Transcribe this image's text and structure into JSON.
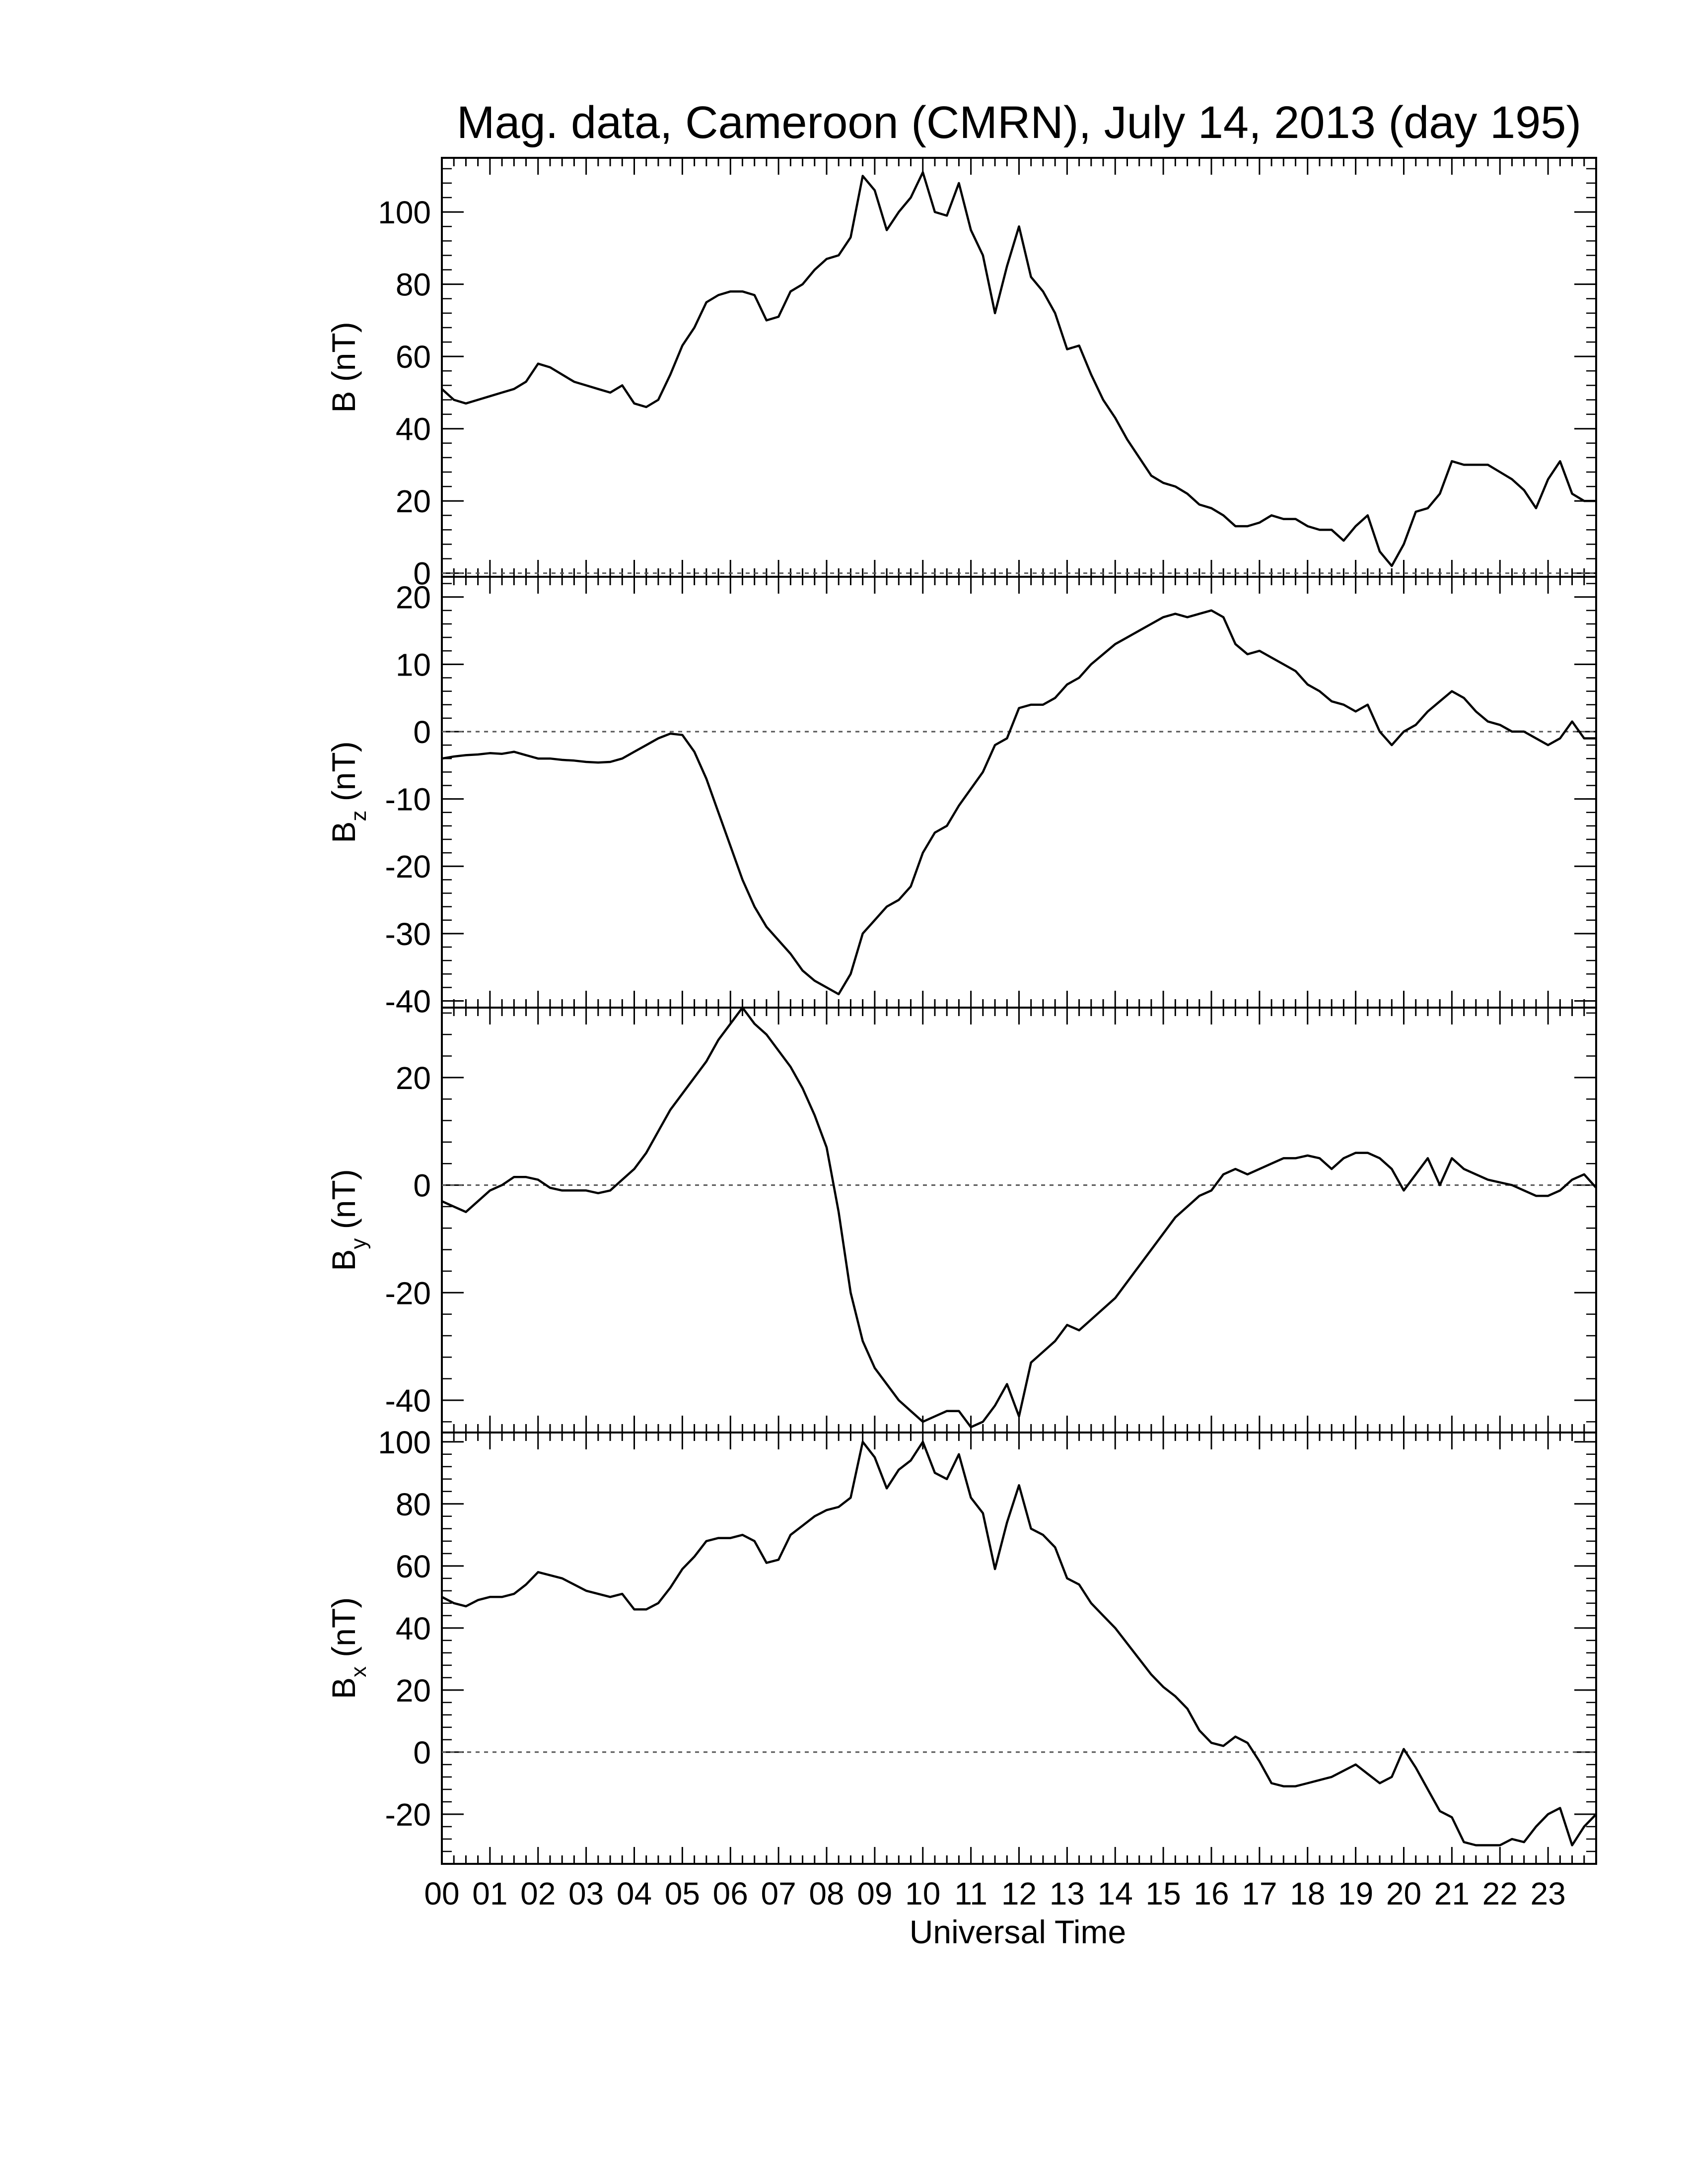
{
  "chart_data": {
    "type": "line",
    "title": "Mag. data, Cameroon (CMRN), July 14, 2013 (day 195)",
    "xlabel": "Universal Time",
    "x_unit": "hours UT",
    "xlim": [
      0,
      24
    ],
    "x_tick_labels": [
      "00",
      "01",
      "02",
      "03",
      "04",
      "05",
      "06",
      "07",
      "08",
      "09",
      "10",
      "11",
      "12",
      "13",
      "14",
      "15",
      "16",
      "17",
      "18",
      "19",
      "20",
      "21",
      "22",
      "23"
    ],
    "colors": {
      "line": "#000000",
      "axis": "#000000",
      "zero_line": "#555555",
      "background": "#ffffff"
    },
    "grid": false,
    "legend": "none",
    "panels": [
      {
        "name": "B",
        "ylabel_main": "B",
        "ylabel_sub": "",
        "ylabel_unit": "(nT)",
        "ylim": [
          -1,
          115
        ],
        "yticks": [
          0,
          20,
          40,
          60,
          80,
          100
        ],
        "zero_line": true,
        "x": [
          0,
          0.25,
          0.5,
          0.75,
          1,
          1.25,
          1.5,
          1.75,
          2,
          2.25,
          2.5,
          2.75,
          3,
          3.25,
          3.5,
          3.75,
          4,
          4.25,
          4.5,
          4.75,
          5,
          5.25,
          5.5,
          5.75,
          6,
          6.25,
          6.5,
          6.75,
          7,
          7.25,
          7.5,
          7.75,
          8,
          8.25,
          8.5,
          8.75,
          9,
          9.25,
          9.5,
          9.75,
          10,
          10.25,
          10.5,
          10.75,
          11,
          11.25,
          11.5,
          11.75,
          12,
          12.25,
          12.5,
          12.75,
          13,
          13.25,
          13.5,
          13.75,
          14,
          14.25,
          14.5,
          14.75,
          15,
          15.25,
          15.5,
          15.75,
          16,
          16.25,
          16.5,
          16.75,
          17,
          17.25,
          17.5,
          17.75,
          18,
          18.25,
          18.5,
          18.75,
          19,
          19.25,
          19.5,
          19.75,
          20,
          20.25,
          20.5,
          20.75,
          21,
          21.25,
          21.5,
          21.75,
          22,
          22.25,
          22.5,
          22.75,
          23,
          23.25,
          23.5,
          23.75,
          24
        ],
        "values": [
          51,
          48,
          47,
          48,
          49,
          50,
          51,
          53,
          58,
          57,
          55,
          53,
          52,
          51,
          50,
          52,
          47,
          46,
          48,
          55,
          63,
          68,
          75,
          77,
          78,
          78,
          77,
          70,
          71,
          78,
          80,
          84,
          87,
          88,
          93,
          110,
          106,
          95,
          100,
          104,
          111,
          100,
          99,
          108,
          95,
          88,
          72,
          85,
          96,
          82,
          78,
          72,
          62,
          63,
          55,
          48,
          43,
          37,
          32,
          27,
          25,
          24,
          22,
          19,
          18,
          16,
          13,
          13,
          14,
          16,
          15,
          15,
          13,
          12,
          12,
          9,
          13,
          16,
          6,
          2,
          8,
          17,
          18,
          22,
          31,
          30,
          30,
          30,
          28,
          26,
          23,
          18,
          26,
          31,
          22,
          20,
          20
        ]
      },
      {
        "name": "Bz",
        "ylabel_main": "B",
        "ylabel_sub": "z",
        "ylabel_unit": "(nT)",
        "ylim": [
          -41,
          23
        ],
        "yticks": [
          -40,
          -30,
          -20,
          -10,
          0,
          10,
          20
        ],
        "zero_line": true,
        "x": [
          0,
          0.25,
          0.5,
          0.75,
          1,
          1.25,
          1.5,
          1.75,
          2,
          2.25,
          2.5,
          2.75,
          3,
          3.25,
          3.5,
          3.75,
          4,
          4.25,
          4.5,
          4.75,
          5,
          5.25,
          5.5,
          5.75,
          6,
          6.25,
          6.5,
          6.75,
          7,
          7.25,
          7.5,
          7.75,
          8,
          8.25,
          8.5,
          8.75,
          9,
          9.25,
          9.5,
          9.75,
          10,
          10.25,
          10.5,
          10.75,
          11,
          11.25,
          11.5,
          11.75,
          12,
          12.25,
          12.5,
          12.75,
          13,
          13.25,
          13.5,
          13.75,
          14,
          14.25,
          14.5,
          14.75,
          15,
          15.25,
          15.5,
          15.75,
          16,
          16.25,
          16.5,
          16.75,
          17,
          17.25,
          17.5,
          17.75,
          18,
          18.25,
          18.5,
          18.75,
          19,
          19.25,
          19.5,
          19.75,
          20,
          20.25,
          20.5,
          20.75,
          21,
          21.25,
          21.5,
          21.75,
          22,
          22.25,
          22.5,
          22.75,
          23,
          23.25,
          23.5,
          23.75,
          24
        ],
        "values": [
          -4,
          -3.7,
          -3.5,
          -3.4,
          -3.2,
          -3.3,
          -3,
          -3.5,
          -4,
          -4,
          -4.2,
          -4.3,
          -4.5,
          -4.6,
          -4.5,
          -4,
          -3,
          -2,
          -1,
          -0.3,
          -0.5,
          -3,
          -7,
          -12,
          -17,
          -22,
          -26,
          -29,
          -31,
          -33,
          -35.5,
          -37,
          -38,
          -39,
          -36,
          -30,
          -28,
          -26,
          -25,
          -23,
          -18,
          -15,
          -14,
          -11,
          -8.5,
          -6,
          -2,
          -1,
          3.5,
          4,
          4,
          5,
          7,
          8,
          10,
          11.5,
          13,
          14,
          15,
          16,
          17,
          17.5,
          17,
          17.5,
          18,
          17,
          13,
          11.5,
          12,
          11,
          10,
          9,
          7,
          6,
          4.5,
          4,
          3,
          4,
          0,
          -2,
          0,
          1,
          3,
          4.5,
          6,
          5,
          3,
          1.5,
          1,
          0,
          0,
          -1,
          -2,
          -1,
          1.5,
          -1,
          -1
        ]
      },
      {
        "name": "By",
        "ylabel_main": "B",
        "ylabel_sub": "y",
        "ylabel_unit": "(nT)",
        "ylim": [
          -46,
          33
        ],
        "yticks": [
          -40,
          -20,
          0,
          20
        ],
        "zero_line": true,
        "x": [
          0,
          0.25,
          0.5,
          0.75,
          1,
          1.25,
          1.5,
          1.75,
          2,
          2.25,
          2.5,
          2.75,
          3,
          3.25,
          3.5,
          3.75,
          4,
          4.25,
          4.5,
          4.75,
          5,
          5.25,
          5.5,
          5.75,
          6,
          6.25,
          6.5,
          6.75,
          7,
          7.25,
          7.5,
          7.75,
          8,
          8.25,
          8.5,
          8.75,
          9,
          9.25,
          9.5,
          9.75,
          10,
          10.25,
          10.5,
          10.75,
          11,
          11.25,
          11.5,
          11.75,
          12,
          12.25,
          12.5,
          12.75,
          13,
          13.25,
          13.5,
          13.75,
          14,
          14.25,
          14.5,
          14.75,
          15,
          15.25,
          15.5,
          15.75,
          16,
          16.25,
          16.5,
          16.75,
          17,
          17.25,
          17.5,
          17.75,
          18,
          18.25,
          18.5,
          18.75,
          19,
          19.25,
          19.5,
          19.75,
          20,
          20.25,
          20.5,
          20.75,
          21,
          21.25,
          21.5,
          21.75,
          22,
          22.25,
          22.5,
          22.75,
          23,
          23.25,
          23.5,
          23.75,
          24
        ],
        "values": [
          -3,
          -4,
          -5,
          -3,
          -1,
          0,
          1.5,
          1.5,
          1,
          -0.5,
          -1,
          -1,
          -1,
          -1.5,
          -1,
          1,
          3,
          6,
          10,
          14,
          17,
          20,
          23,
          27,
          30,
          33,
          30,
          28,
          25,
          22,
          18,
          13,
          7,
          -5,
          -20,
          -29,
          -34,
          -37,
          -40,
          -42,
          -44,
          -43,
          -42,
          -42,
          -45,
          -44,
          -41,
          -37,
          -43,
          -33,
          -31,
          -29,
          -26,
          -27,
          -25,
          -23,
          -21,
          -18,
          -15,
          -12,
          -9,
          -6,
          -4,
          -2,
          -1,
          2,
          3,
          2,
          3,
          4,
          5,
          5,
          5.5,
          5,
          3,
          5,
          6,
          6,
          5,
          3,
          -1,
          2,
          5,
          0,
          5,
          3,
          2,
          1,
          0.5,
          0,
          -1,
          -2,
          -2,
          -1,
          1,
          2,
          -0.5
        ]
      },
      {
        "name": "Bx",
        "ylabel_main": "B",
        "ylabel_sub": "x",
        "ylabel_unit": "(nT)",
        "ylim": [
          -36,
          103
        ],
        "yticks": [
          -20,
          0,
          20,
          40,
          60,
          80,
          100
        ],
        "zero_line": true,
        "x": [
          0,
          0.25,
          0.5,
          0.75,
          1,
          1.25,
          1.5,
          1.75,
          2,
          2.25,
          2.5,
          2.75,
          3,
          3.25,
          3.5,
          3.75,
          4,
          4.25,
          4.5,
          4.75,
          5,
          5.25,
          5.5,
          5.75,
          6,
          6.25,
          6.5,
          6.75,
          7,
          7.25,
          7.5,
          7.75,
          8,
          8.25,
          8.5,
          8.75,
          9,
          9.25,
          9.5,
          9.75,
          10,
          10.25,
          10.5,
          10.75,
          11,
          11.25,
          11.5,
          11.75,
          12,
          12.25,
          12.5,
          12.75,
          13,
          13.25,
          13.5,
          13.75,
          14,
          14.25,
          14.5,
          14.75,
          15,
          15.25,
          15.5,
          15.75,
          16,
          16.25,
          16.5,
          16.75,
          17,
          17.25,
          17.5,
          17.75,
          18,
          18.25,
          18.5,
          18.75,
          19,
          19.25,
          19.5,
          19.75,
          20,
          20.25,
          20.5,
          20.75,
          21,
          21.25,
          21.5,
          21.75,
          22,
          22.25,
          22.5,
          22.75,
          23,
          23.25,
          23.5,
          23.75,
          24
        ],
        "values": [
          50,
          48,
          47,
          49,
          50,
          50,
          51,
          54,
          58,
          57,
          56,
          54,
          52,
          51,
          50,
          51,
          46,
          46,
          48,
          53,
          59,
          63,
          68,
          69,
          69,
          70,
          68,
          61,
          62,
          70,
          73,
          76,
          78,
          79,
          82,
          100,
          95,
          85,
          91,
          94,
          100,
          90,
          88,
          96,
          82,
          77,
          59,
          74,
          86,
          72,
          70,
          66,
          56,
          54,
          48,
          44,
          40,
          35,
          30,
          25,
          21,
          18,
          14,
          7,
          3,
          2,
          5,
          3,
          -3,
          -10,
          -11,
          -11,
          -10,
          -9,
          -8,
          -6,
          -4,
          -7,
          -10,
          -8,
          1,
          -5,
          -12,
          -19,
          -21,
          -29,
          -30,
          -30,
          -30,
          -28,
          -29,
          -24,
          -20,
          -18,
          -30,
          -24,
          -20
        ]
      }
    ]
  }
}
